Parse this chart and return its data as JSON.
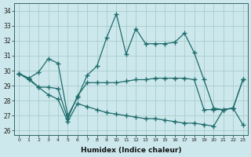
{
  "xlabel": "Humidex (Indice chaleur)",
  "bg_color": "#cce8ec",
  "grid_color": "#aacccc",
  "line_color": "#1e6b6b",
  "xlim": [
    -0.5,
    23.5
  ],
  "ylim": [
    25.7,
    34.5
  ],
  "yticks": [
    26,
    27,
    28,
    29,
    30,
    31,
    32,
    33,
    34
  ],
  "xticks": [
    0,
    1,
    2,
    3,
    4,
    5,
    6,
    7,
    8,
    9,
    10,
    11,
    12,
    13,
    14,
    15,
    16,
    17,
    18,
    19,
    20,
    21,
    22,
    23
  ],
  "line1_y": [
    29.8,
    29.5,
    29.9,
    30.8,
    30.5,
    27.0,
    28.2,
    29.7,
    30.3,
    32.2,
    33.8,
    31.1,
    32.8,
    31.8,
    31.8,
    31.8,
    31.9,
    32.5,
    31.2,
    29.4,
    27.5,
    27.4,
    27.5,
    29.4
  ],
  "line2_y": [
    29.8,
    29.5,
    28.9,
    28.9,
    28.8,
    26.8,
    28.3,
    29.2,
    29.2,
    29.2,
    29.2,
    29.3,
    29.4,
    29.4,
    29.5,
    29.5,
    29.5,
    29.5,
    29.4,
    27.4,
    27.4,
    27.4,
    27.5,
    29.4
  ],
  "line3_y": [
    29.8,
    29.4,
    28.9,
    28.4,
    28.1,
    26.6,
    27.8,
    27.6,
    27.4,
    27.2,
    27.1,
    27.0,
    26.9,
    26.8,
    26.8,
    26.7,
    26.6,
    26.5,
    26.5,
    26.4,
    26.3,
    27.4,
    27.5,
    26.4
  ]
}
